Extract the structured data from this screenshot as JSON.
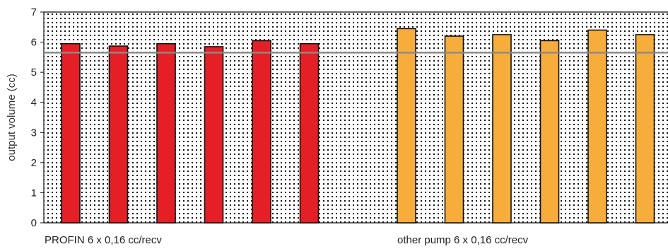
{
  "chart_data": {
    "type": "bar",
    "title": "",
    "xlabel": "",
    "ylabel": "output volume (cc)",
    "ylim": [
      0,
      7
    ],
    "yticks": [
      "0",
      "1",
      "2",
      "3",
      "4",
      "5",
      "6",
      "7"
    ],
    "reference_line": {
      "value": 5.65,
      "color": "#8a8a8a"
    },
    "background_pattern": "dotted",
    "groups": [
      {
        "label": "PROFIN 6 x 0,16 cc/recv",
        "color": "#e41f26",
        "values": [
          5.95,
          5.87,
          5.95,
          5.85,
          6.05,
          5.95
        ]
      },
      {
        "label": "other pump 6 x 0,16 cc/recv",
        "color": "#f7ad3c",
        "values": [
          6.45,
          6.2,
          6.25,
          6.05,
          6.4,
          6.25
        ]
      }
    ],
    "grid": false,
    "legend": "none"
  }
}
